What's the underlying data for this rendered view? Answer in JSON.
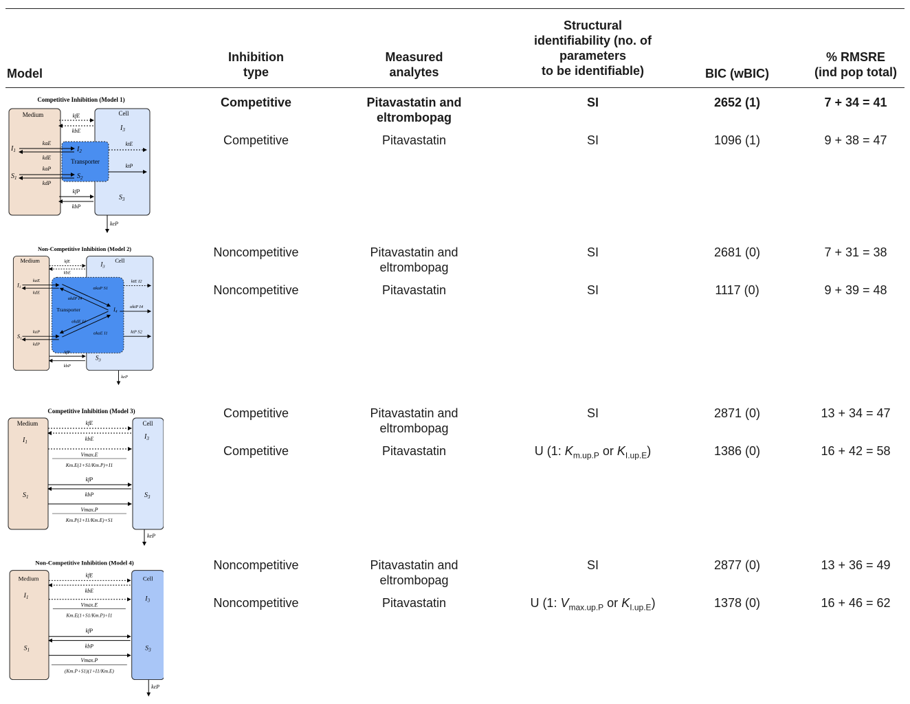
{
  "headers": {
    "model": "Model",
    "inhibition_type": "Inhibition\ntype",
    "measured_analytes": "Measured\nanalytes",
    "structural": "Structural\nidentifiability (no. of\nparameters\nto be identifiable)",
    "bic": "BIC (wBIC)",
    "rmsre": "% RMSRE\n(ind pop total)"
  },
  "models": [
    {
      "diagram_title": "Competitive Inhibition (Model 1)",
      "rows": [
        {
          "inhibition": "Competitive",
          "analytes": "Pitavastatin and eltrombopag",
          "si": "SI",
          "bic": "2652 (1)",
          "rmsre": "7 + 34 = 41",
          "bold": true
        },
        {
          "inhibition": "Competitive",
          "analytes": "Pitavastatin",
          "si": "SI",
          "bic": "1096 (1)",
          "rmsre": "9 + 38 = 47"
        }
      ]
    },
    {
      "diagram_title": "Non-Competitive Inhibition (Model 2)",
      "rows": [
        {
          "inhibition": "Noncompetitive",
          "analytes": "Pitavastatin and eltrombopag",
          "si": "SI",
          "bic": "2681 (0)",
          "rmsre": "7 + 31 = 38"
        },
        {
          "inhibition": "Noncompetitive",
          "analytes": "Pitavastatin",
          "si": "SI",
          "bic": "1117 (0)",
          "rmsre": "9 + 39 = 48"
        }
      ]
    },
    {
      "diagram_title": "Competitive Inhibition (Model 3)",
      "rows": [
        {
          "inhibition": "Competitive",
          "analytes": "Pitavastatin and eltrombopag",
          "si": "SI",
          "bic": "2871 (0)",
          "rmsre": "13 + 34 = 47"
        },
        {
          "inhibition": "Competitive",
          "analytes": "Pitavastatin",
          "si_parts": {
            "pre": "U (1: ",
            "p1": "K",
            "s1": "m.up.P",
            "mid": " or ",
            "p2": "K",
            "s2": "I.up.E",
            "post": ")"
          },
          "bic": "1386 (0)",
          "rmsre": "16 + 42 = 58"
        }
      ]
    },
    {
      "diagram_title": "Non-Competitive Inhibition (Model 4)",
      "rows": [
        {
          "inhibition": "Noncompetitive",
          "analytes": "Pitavastatin and eltrombopag",
          "si": "SI",
          "bic": "2877 (0)",
          "rmsre": "13 + 36 = 49"
        },
        {
          "inhibition": "Noncompetitive",
          "analytes": "Pitavastatin",
          "si_parts": {
            "pre": "U (1: ",
            "p1": "V",
            "s1": "max.up.P",
            "mid": " or ",
            "p2": "K",
            "s2": "I.up.E",
            "post": ")"
          },
          "bic": "1378 (0)",
          "rmsre": "16 + 46 = 62"
        }
      ]
    }
  ],
  "diagram_labels": {
    "medium": "Medium",
    "cell": "Cell",
    "transporter": "Transporter",
    "I1": "I",
    "S1": "S",
    "I2": "I",
    "S2": "S",
    "I3": "I",
    "S3": "S",
    "I4": "I",
    "kfE": "kfE",
    "kbE": "kbE",
    "kaE": "kaE",
    "kdE": "kdE",
    "kaP": "kaP",
    "kdP": "kdP",
    "ktE": "ktE",
    "ktP": "ktP",
    "kfP": "kfP",
    "kbP": "kbP",
    "keP": "keP",
    "m2_a1": "αkaP S1",
    "m2_a2": "αkdP I4",
    "m2_a3": "αkdE I4",
    "m2_a4": "αkaE I1",
    "m2_a5": "ktE I2",
    "m2_a6": "αktP I4",
    "m2_a7": "ktP S2",
    "vmaxE": "Vmax.E",
    "vmaxP": "Vmax.P",
    "m3_denE": "Km.E(1+S1/Km.P)+I1",
    "m3_denP": "Km.P(1+I1/Km.E)+S1",
    "m4_denE": "Km.E(1+S1/Km.P)+I1",
    "m4_denP": "(Km.P+S1)(1+I1/Km.E)"
  },
  "colors": {
    "medium_fill": "#f2dfcf",
    "cell_fill": "#d9e6fb",
    "cell_fill_dark": "#a9c6f7",
    "transporter_fill": "#4a8ef0"
  }
}
